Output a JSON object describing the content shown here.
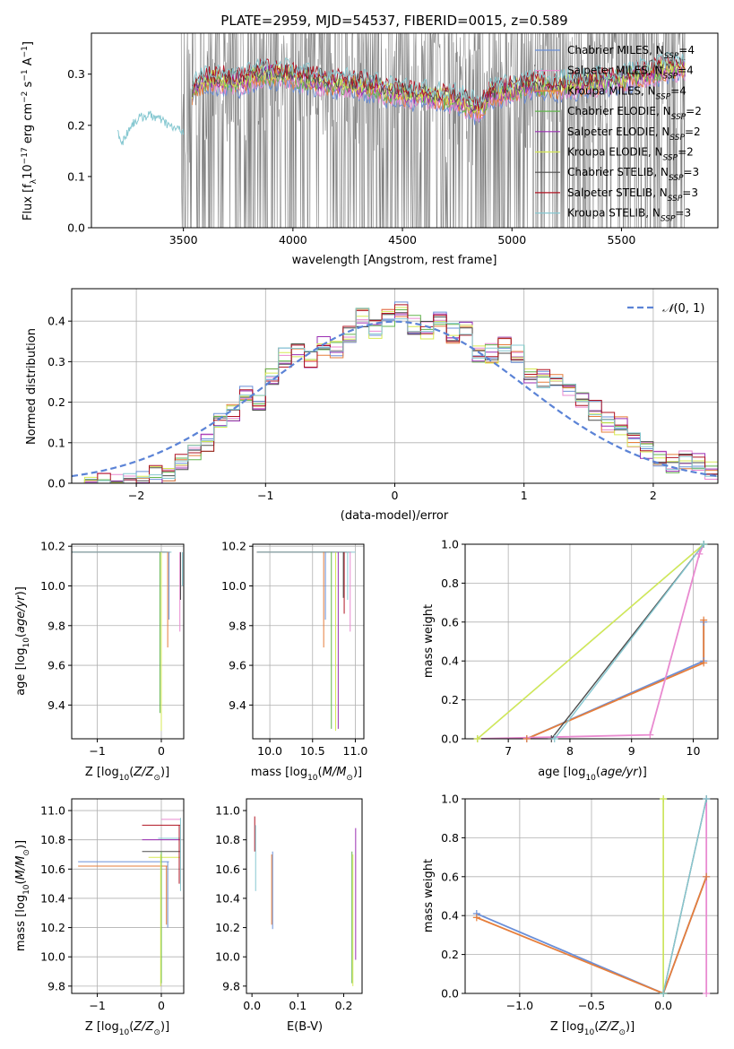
{
  "colors": {
    "Chabrier MILES": "#6a8fd8",
    "Salpeter MILES": "#e98ad0",
    "Kroupa MILES": "#e67e3b",
    "Chabrier ELODIE": "#62b54d",
    "Salpeter ELODIE": "#9b2fb3",
    "Kroupa ELODIE": "#d7ea55",
    "Chabrier STELIB": "#4d4d4d",
    "Salpeter STELIB": "#b01423",
    "Kroupa STELIB": "#86c8d1",
    "gaussian": "#5b83d6",
    "grid": "#b0b0b0",
    "spectrum_noise": "#808080"
  },
  "chart_data": [
    {
      "type": "line",
      "title": "PLATE=2959, MJD=54537, FIBERID=0015, z=0.589",
      "xlabel": "wavelength [Angstrom, rest frame]",
      "ylabel": "Flux [f_λ 10^-17 erg cm^-2 s^-1 A^-1]",
      "xlim": [
        3080,
        5940
      ],
      "ylim": [
        0,
        0.38
      ],
      "xticks": [
        3500,
        4000,
        4500,
        5000,
        5500
      ],
      "yticks": [
        0.0,
        0.1,
        0.2,
        0.3
      ],
      "legend_placement": "upper-right",
      "series": [
        {
          "name": "Chabrier MILES",
          "color_key": "Chabrier MILES"
        },
        {
          "name": "Salpeter MILES",
          "color_key": "Salpeter MILES"
        },
        {
          "name": "Kroupa MILES",
          "color_key": "Kroupa MILES"
        },
        {
          "name": "Chabrier ELODIE",
          "color_key": "Chabrier ELODIE"
        },
        {
          "name": "Salpeter ELODIE",
          "color_key": "Salpeter ELODIE"
        },
        {
          "name": "Kroupa ELODIE",
          "color_key": "Kroupa ELODIE"
        },
        {
          "name": "Chabrier STELIB",
          "color_key": "Chabrier STELIB"
        },
        {
          "name": "Salpeter STELIB",
          "color_key": "Salpeter STELIB"
        },
        {
          "name": "Kroupa STELIB",
          "color_key": "Kroupa STELIB"
        }
      ],
      "legend_labels": [
        {
          "base": "Chabrier MILES, N",
          "sub": "SSP",
          "tail": "=4"
        },
        {
          "base": "Salpeter MILES, N",
          "sub": "SSP",
          "tail": "=4"
        },
        {
          "base": "Kroupa MILES, N",
          "sub": "SSP",
          "tail": "=4"
        },
        {
          "base": "Chabrier ELODIE, N",
          "sub": "SSP",
          "tail": "=2"
        },
        {
          "base": "Salpeter ELODIE, N",
          "sub": "SSP",
          "tail": "=2"
        },
        {
          "base": "Kroupa ELODIE, N",
          "sub": "SSP",
          "tail": "=2"
        },
        {
          "base": "Chabrier STELIB, N",
          "sub": "SSP",
          "tail": "=3"
        },
        {
          "base": "Salpeter STELIB, N",
          "sub": "SSP",
          "tail": "=3"
        },
        {
          "base": "Kroupa STELIB, N",
          "sub": "SSP",
          "tail": "=3"
        }
      ],
      "model_trend": [
        [
          3200,
          0.19
        ],
        [
          3220,
          0.165
        ],
        [
          3260,
          0.2
        ],
        [
          3300,
          0.215
        ],
        [
          3350,
          0.22
        ],
        [
          3400,
          0.21
        ],
        [
          3450,
          0.195
        ],
        [
          3500,
          0.19
        ],
        [
          3550,
          0.28
        ],
        [
          3650,
          0.29
        ],
        [
          3750,
          0.285
        ],
        [
          3850,
          0.3
        ],
        [
          3950,
          0.3
        ],
        [
          4050,
          0.29
        ],
        [
          4150,
          0.285
        ],
        [
          4250,
          0.28
        ],
        [
          4350,
          0.275
        ],
        [
          4450,
          0.265
        ],
        [
          4550,
          0.26
        ],
        [
          4650,
          0.255
        ],
        [
          4750,
          0.25
        ],
        [
          4850,
          0.23
        ],
        [
          4900,
          0.26
        ],
        [
          5000,
          0.27
        ],
        [
          5100,
          0.28
        ],
        [
          5200,
          0.275
        ],
        [
          5300,
          0.28
        ],
        [
          5400,
          0.285
        ],
        [
          5500,
          0.29
        ],
        [
          5600,
          0.3
        ],
        [
          5700,
          0.31
        ],
        [
          5790,
          0.31
        ]
      ],
      "noise_range": [
        3490,
        5790
      ]
    },
    {
      "type": "histogram",
      "xlabel": "(data-model)/error",
      "ylabel": "Normed distribution",
      "xlim": [
        -2.5,
        2.5
      ],
      "ylim": [
        0,
        0.48
      ],
      "xticks": [
        -2,
        -1,
        0,
        1,
        2
      ],
      "yticks": [
        0.0,
        0.1,
        0.2,
        0.3,
        0.4
      ],
      "legend": [
        {
          "label_prefix": "𝒩",
          "label_suffix": "(0, 1)",
          "style": "dashed"
        }
      ],
      "legend_placement": "upper-right",
      "bin_edges": [
        -2.4,
        -2.3,
        -2.2,
        -2.1,
        -2.0,
        -1.9,
        -1.8,
        -1.7,
        -1.6,
        -1.5,
        -1.4,
        -1.3,
        -1.2,
        -1.1,
        -1.0,
        -0.9,
        -0.8,
        -0.7,
        -0.6,
        -0.5,
        -0.4,
        -0.3,
        -0.2,
        -0.1,
        0.0,
        0.1,
        0.2,
        0.3,
        0.4,
        0.5,
        0.6,
        0.7,
        0.8,
        0.9,
        1.0,
        1.1,
        1.2,
        1.3,
        1.4,
        1.5,
        1.6,
        1.7,
        1.8,
        1.9,
        2.0,
        2.1,
        2.2,
        2.3,
        2.4,
        2.5
      ],
      "base_density": [
        0.0,
        0.0,
        0.0,
        0.0,
        0.01,
        0.02,
        0.03,
        0.05,
        0.07,
        0.1,
        0.15,
        0.17,
        0.22,
        0.2,
        0.26,
        0.31,
        0.33,
        0.31,
        0.34,
        0.33,
        0.37,
        0.41,
        0.38,
        0.41,
        0.43,
        0.39,
        0.38,
        0.4,
        0.37,
        0.39,
        0.32,
        0.32,
        0.34,
        0.32,
        0.27,
        0.26,
        0.26,
        0.24,
        0.2,
        0.18,
        0.15,
        0.14,
        0.1,
        0.08,
        0.06,
        0.05,
        0.06,
        0.05,
        0.03
      ]
    },
    {
      "type": "scatter",
      "xlabel": "Z [log10(Z/Z_sun)]",
      "ylabel": "age  [log10(age/yr)]",
      "xlim": [
        -1.4,
        0.35
      ],
      "ylim": [
        9.23,
        10.21
      ],
      "xticks": [
        -1,
        0
      ],
      "yticks": [
        9.4,
        9.6,
        9.8,
        10.0,
        10.2
      ]
    },
    {
      "type": "scatter",
      "xlabel": "mass [log10(M/M_sun)]",
      "ylabel": "",
      "xlim": [
        9.8,
        11.1
      ],
      "ylim": [
        9.23,
        10.21
      ],
      "xticks": [
        10.0,
        10.5,
        11.0
      ],
      "yticks": [
        9.4,
        9.6,
        9.8,
        10.0,
        10.2
      ]
    },
    {
      "type": "line",
      "xlabel": "age  [log10(age/yr)]",
      "ylabel": "mass weight",
      "xlim": [
        6.3,
        10.4
      ],
      "ylim": [
        0,
        1
      ],
      "xticks": [
        7,
        8,
        9,
        10
      ],
      "yticks": [
        0.0,
        0.2,
        0.4,
        0.6,
        0.8,
        1.0
      ],
      "series": [
        {
          "name": "Chabrier MILES",
          "x": [
            7.3,
            10.17,
            10.17
          ],
          "y": [
            0.0,
            0.4,
            0.6
          ]
        },
        {
          "name": "Kroupa MILES",
          "x": [
            7.3,
            10.17,
            10.17
          ],
          "y": [
            0.0,
            0.39,
            0.61
          ]
        },
        {
          "name": "Salpeter MILES",
          "x": [
            6.5,
            9.3,
            10.1,
            10.17
          ],
          "y": [
            0.0,
            0.02,
            0.95,
            1.0
          ]
        },
        {
          "name": "Chabrier ELODIE",
          "x": [
            6.5,
            10.17
          ],
          "y": [
            0.0,
            1.0
          ]
        },
        {
          "name": "Kroupa ELODIE",
          "x": [
            6.5,
            10.17
          ],
          "y": [
            0.0,
            1.0
          ]
        },
        {
          "name": "Chabrier STELIB",
          "x": [
            7.7,
            10.17
          ],
          "y": [
            0.0,
            1.0
          ]
        },
        {
          "name": "Kroupa STELIB",
          "x": [
            7.75,
            10.17
          ],
          "y": [
            0.0,
            1.0
          ]
        }
      ]
    },
    {
      "type": "scatter",
      "xlabel": "Z [log10(Z/Z_sun)]",
      "ylabel": "mass [log10(M/M_sun)]",
      "xlim": [
        -1.4,
        0.35
      ],
      "ylim": [
        9.75,
        11.08
      ],
      "xticks": [
        -1,
        0
      ],
      "yticks": [
        9.8,
        10.0,
        10.2,
        10.4,
        10.6,
        10.8,
        11.0
      ]
    },
    {
      "type": "scatter",
      "xlabel": "E(B-V)",
      "ylabel": "",
      "xlim": [
        -0.012,
        0.24
      ],
      "ylim": [
        9.75,
        11.08
      ],
      "xticks": [
        0.0,
        0.1,
        0.2
      ],
      "yticks": [
        9.8,
        10.0,
        10.2,
        10.4,
        10.6,
        10.8,
        11.0
      ],
      "series": [
        {
          "name": "Salpeter STELIB",
          "x": 0.006,
          "y_low": 10.72,
          "y_high": 10.96
        },
        {
          "name": "Kroupa STELIB",
          "x": 0.008,
          "y_low": 10.45,
          "y_high": 10.9
        },
        {
          "name": "Chabrier MILES",
          "x": 0.045,
          "y_low": 10.19,
          "y_high": 10.72
        },
        {
          "name": "Kroupa MILES",
          "x": 0.043,
          "y_low": 10.22,
          "y_high": 10.7
        },
        {
          "name": "Chabrier ELODIE",
          "x": 0.218,
          "y_low": 9.82,
          "y_high": 10.72
        },
        {
          "name": "Salpeter ELODIE",
          "x": 0.226,
          "y_low": 9.98,
          "y_high": 10.88
        },
        {
          "name": "Kroupa ELODIE",
          "x": 0.22,
          "y_low": 9.8,
          "y_high": 10.7
        }
      ]
    },
    {
      "type": "line",
      "xlabel": "Z [log10(Z/Z_sun)]",
      "ylabel": "mass weight",
      "xlim": [
        -1.38,
        0.38
      ],
      "ylim": [
        0,
        1
      ],
      "xticks": [
        -1.0,
        -0.5,
        0.0
      ],
      "yticks": [
        0.0,
        0.2,
        0.4,
        0.6,
        0.8,
        1.0
      ],
      "series": [
        {
          "name": "Chabrier MILES",
          "x": [
            -1.3,
            0.0,
            0.3
          ],
          "y": [
            0.41,
            0.0,
            0.6
          ]
        },
        {
          "name": "Kroupa MILES",
          "x": [
            -1.3,
            0.0,
            0.3
          ],
          "y": [
            0.39,
            0.0,
            0.6
          ]
        },
        {
          "name": "Salpeter MILES",
          "x": [
            0.3,
            0.3
          ],
          "y": [
            0.0,
            1.0
          ]
        },
        {
          "name": "Chabrier ELODIE",
          "x": [
            0.0,
            0.0
          ],
          "y": [
            0.0,
            1.0
          ]
        },
        {
          "name": "Kroupa ELODIE",
          "x": [
            0.0,
            0.0
          ],
          "y": [
            0.0,
            1.0
          ]
        },
        {
          "name": "Chabrier STELIB",
          "x": [
            0.0,
            0.3
          ],
          "y": [
            0.0,
            1.0
          ]
        },
        {
          "name": "Kroupa STELIB",
          "x": [
            0.0,
            0.3
          ],
          "y": [
            0.0,
            1.0
          ]
        }
      ]
    }
  ]
}
